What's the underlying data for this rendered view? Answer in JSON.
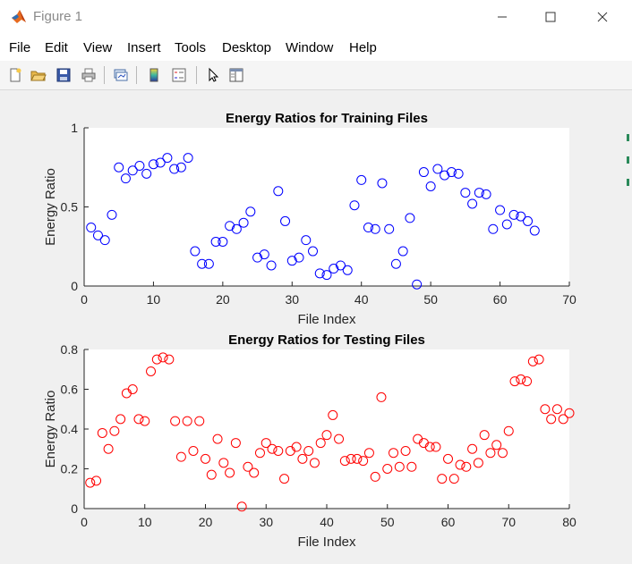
{
  "window": {
    "title": "Figure 1",
    "accent": "#0072bd"
  },
  "menu": {
    "items": [
      "File",
      "Edit",
      "View",
      "Insert",
      "Tools",
      "Desktop",
      "Window",
      "Help"
    ]
  },
  "toolbar": {
    "buttons": [
      "new-figure-icon",
      "open-file-icon",
      "save-icon",
      "print-icon",
      "link-plot-icon",
      "colorbar-icon",
      "legend-icon",
      "pointer-icon",
      "property-inspector-icon"
    ]
  },
  "chart_data": [
    {
      "type": "scatter",
      "title": "Energy Ratios for Training Files",
      "xlabel": "File Index",
      "ylabel": "Energy Ratio",
      "xlim": [
        0,
        70
      ],
      "ylim": [
        0,
        1
      ],
      "xticks": [
        0,
        10,
        20,
        30,
        40,
        50,
        60,
        70
      ],
      "yticks": [
        0,
        0.5,
        1
      ],
      "ytick_labels": [
        "0",
        "0.5",
        "1"
      ],
      "grid": false,
      "marker": "open-circle",
      "color": "#0000ff",
      "x": [
        1,
        2,
        3,
        4,
        5,
        6,
        7,
        8,
        9,
        10,
        11,
        12,
        13,
        14,
        15,
        16,
        17,
        18,
        19,
        20,
        21,
        22,
        23,
        24,
        25,
        26,
        27,
        28,
        29,
        30,
        31,
        32,
        33,
        34,
        35,
        36,
        37,
        38,
        39,
        40,
        41,
        42,
        43,
        44,
        45,
        46,
        47,
        48,
        49,
        50,
        51,
        52,
        53,
        54,
        55,
        56,
        57,
        58,
        59,
        60,
        61,
        62,
        63,
        64,
        65
      ],
      "y": [
        0.37,
        0.32,
        0.29,
        0.45,
        0.75,
        0.68,
        0.73,
        0.76,
        0.71,
        0.77,
        0.78,
        0.81,
        0.74,
        0.75,
        0.81,
        0.22,
        0.14,
        0.14,
        0.28,
        0.28,
        0.38,
        0.36,
        0.4,
        0.47,
        0.18,
        0.2,
        0.13,
        0.6,
        0.41,
        0.16,
        0.18,
        0.29,
        0.22,
        0.08,
        0.07,
        0.11,
        0.13,
        0.1,
        0.51,
        0.67,
        0.37,
        0.36,
        0.65,
        0.36,
        0.14,
        0.22,
        0.43,
        0.01,
        0.72,
        0.63,
        0.74,
        0.7,
        0.72,
        0.71,
        0.59,
        0.52,
        0.59,
        0.58,
        0.36,
        0.48,
        0.39,
        0.45,
        0.44,
        0.41,
        0.35
      ]
    },
    {
      "type": "scatter",
      "title": "Energy Ratios for Testing Files",
      "xlabel": "File Index",
      "ylabel": "Energy Ratio",
      "xlim": [
        0,
        80
      ],
      "ylim": [
        0,
        0.8
      ],
      "xticks": [
        0,
        10,
        20,
        30,
        40,
        50,
        60,
        70,
        80
      ],
      "yticks": [
        0,
        0.2,
        0.4,
        0.6,
        0.8
      ],
      "ytick_labels": [
        "0",
        "0.2",
        "0.4",
        "0.6",
        "0.8"
      ],
      "grid": false,
      "marker": "open-circle",
      "color": "#ff0000",
      "x": [
        1,
        2,
        3,
        4,
        5,
        6,
        7,
        8,
        9,
        10,
        11,
        12,
        13,
        14,
        15,
        16,
        17,
        18,
        19,
        20,
        21,
        22,
        23,
        24,
        25,
        26,
        27,
        28,
        29,
        30,
        31,
        32,
        33,
        34,
        35,
        36,
        37,
        38,
        39,
        40,
        41,
        42,
        43,
        44,
        45,
        46,
        47,
        48,
        49,
        50,
        51,
        52,
        53,
        54,
        55,
        56,
        57,
        58,
        59,
        60,
        61,
        62,
        63,
        64,
        65,
        66,
        67,
        68,
        69,
        70,
        71,
        72,
        73,
        74,
        75,
        76,
        77,
        78,
        79,
        80
      ],
      "y": [
        0.13,
        0.14,
        0.38,
        0.3,
        0.39,
        0.45,
        0.58,
        0.6,
        0.45,
        0.44,
        0.69,
        0.75,
        0.76,
        0.75,
        0.44,
        0.26,
        0.44,
        0.29,
        0.44,
        0.25,
        0.17,
        0.35,
        0.23,
        0.18,
        0.33,
        0.01,
        0.21,
        0.18,
        0.28,
        0.33,
        0.3,
        0.29,
        0.15,
        0.29,
        0.31,
        0.25,
        0.29,
        0.23,
        0.33,
        0.37,
        0.47,
        0.35,
        0.24,
        0.25,
        0.25,
        0.24,
        0.28,
        0.16,
        0.56,
        0.2,
        0.28,
        0.21,
        0.29,
        0.21,
        0.35,
        0.33,
        0.31,
        0.31,
        0.15,
        0.25,
        0.15,
        0.22,
        0.21,
        0.3,
        0.23,
        0.37,
        0.28,
        0.32,
        0.28,
        0.39,
        0.64,
        0.65,
        0.64,
        0.74,
        0.75,
        0.5,
        0.45,
        0.5,
        0.45,
        0.48
      ]
    }
  ]
}
